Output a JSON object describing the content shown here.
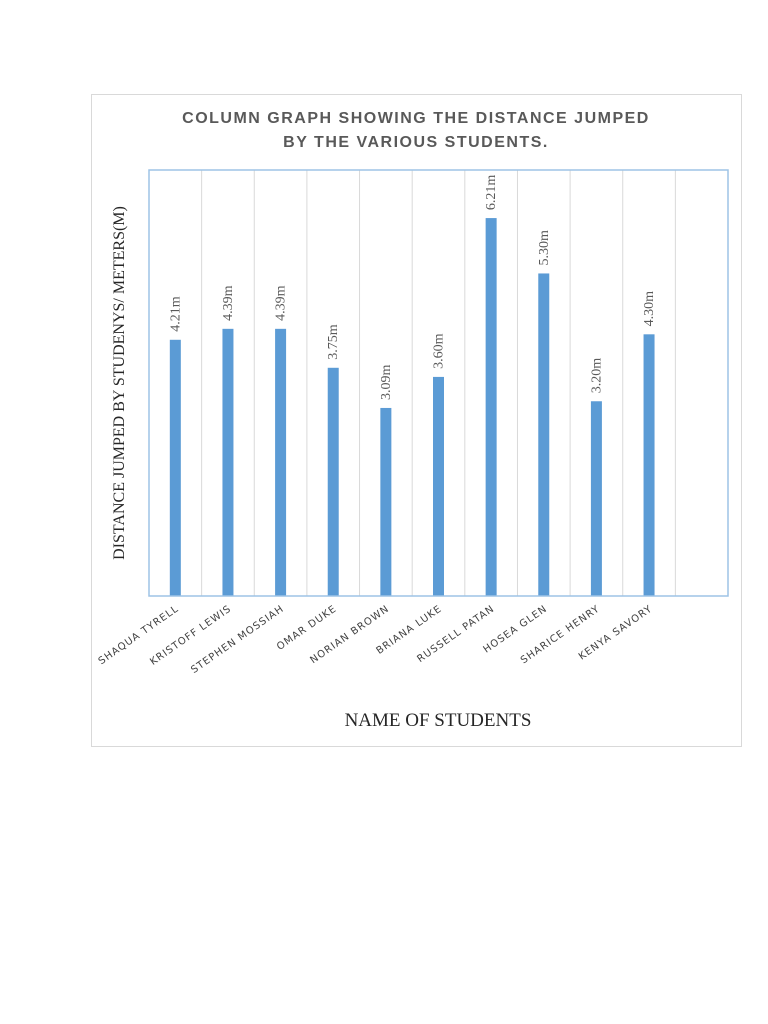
{
  "chart_data": {
    "type": "bar",
    "title": "COLUMN GRAPH SHOWING THE DISTANCE JUMPED BY THE VARIOUS STUDENTS.",
    "title_lines": [
      "COLUMN GRAPH SHOWING THE DISTANCE JUMPED",
      "BY THE VARIOUS STUDENTS."
    ],
    "xlabel": "NAME OF STUDENTS",
    "ylabel": "DISTANCE JUMPED BY STUDENYS/ METERS(M)",
    "categories": [
      "SHAQUA TYRELL",
      "KRISTOFF LEWIS",
      "STEPHEN MOSSIAH",
      "OMAR DUKE",
      "NORIAN BROWN",
      "BRIANA LUKE",
      "RUSSELL PATAN",
      "HOSEA GLEN",
      "SHARICE HENRY",
      "KENYA SAVORY",
      ""
    ],
    "values": [
      4.21,
      4.39,
      4.39,
      3.75,
      3.09,
      3.6,
      6.21,
      5.3,
      3.2,
      4.3,
      null
    ],
    "data_labels": [
      "4.21m",
      "4.39m",
      "4.39m",
      "3.75m",
      "3.09m",
      "3.60m",
      "6.21m",
      "5.30m",
      "3.20m",
      "4.30m",
      ""
    ],
    "ylim": [
      0,
      7
    ],
    "grid": "vertical",
    "bar_color": "#5b9bd5",
    "grid_color": "#d9d9d9",
    "plot_border_color": "#9dc3e6"
  }
}
